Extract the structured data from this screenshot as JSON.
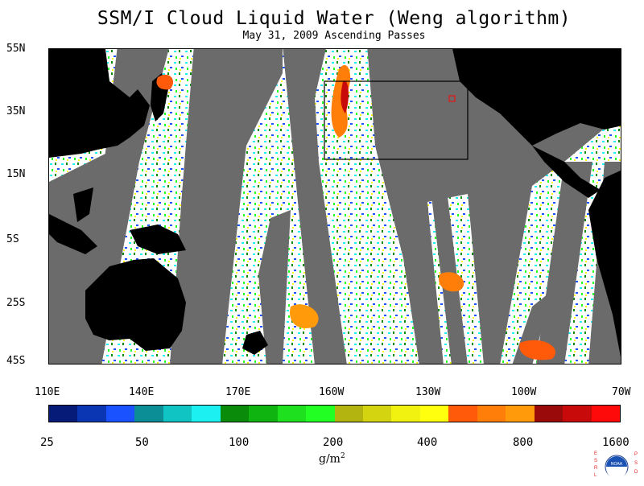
{
  "title": "SSM/I Cloud Liquid Water (Weng algorithm)",
  "subtitle": "May 31, 2009  Ascending Passes",
  "lat_labels": [
    "55N",
    "35N",
    "15N",
    "5S",
    "25S",
    "45S"
  ],
  "lon_labels": [
    "110E",
    "140E",
    "170E",
    "160W",
    "130W",
    "100W",
    "70W"
  ],
  "colorbar": {
    "colors": [
      "#061a78",
      "#0a36b4",
      "#1a52ff",
      "#0c8e96",
      "#10c4c4",
      "#1cf0f0",
      "#0a8c0a",
      "#10b410",
      "#1ee01e",
      "#22ff22",
      "#b4b410",
      "#d4d410",
      "#f2f210",
      "#ffff0e",
      "#ff5a0a",
      "#ff7e0a",
      "#ff9a0a",
      "#9a0a0a",
      "#c80a0a",
      "#ff0a0a"
    ],
    "tick_labels": [
      "25",
      "50",
      "100",
      "200",
      "400",
      "800",
      "1600"
    ],
    "units_main": "g/m",
    "units_exp": "2"
  },
  "logo": {
    "left_letters": "ESRL",
    "right_letters": "PSD",
    "center_text": "NOAA"
  },
  "colors": {
    "land": "#000000",
    "no_data": "#6b6b6b",
    "box": "#000000",
    "marker": "#ff0000"
  }
}
